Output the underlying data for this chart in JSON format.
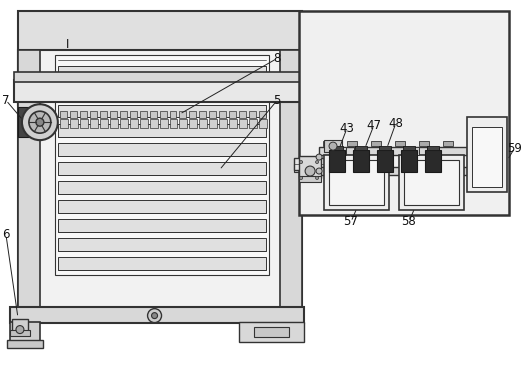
{
  "background_color": "#ffffff",
  "dark_color": "#333333",
  "mid_color": "#666666",
  "light_color": "#e8e8e8",
  "lighter_color": "#f2f2f2",
  "black_color": "#1a1a1a",
  "fig_width": 5.22,
  "fig_height": 3.7,
  "dpi": 100
}
